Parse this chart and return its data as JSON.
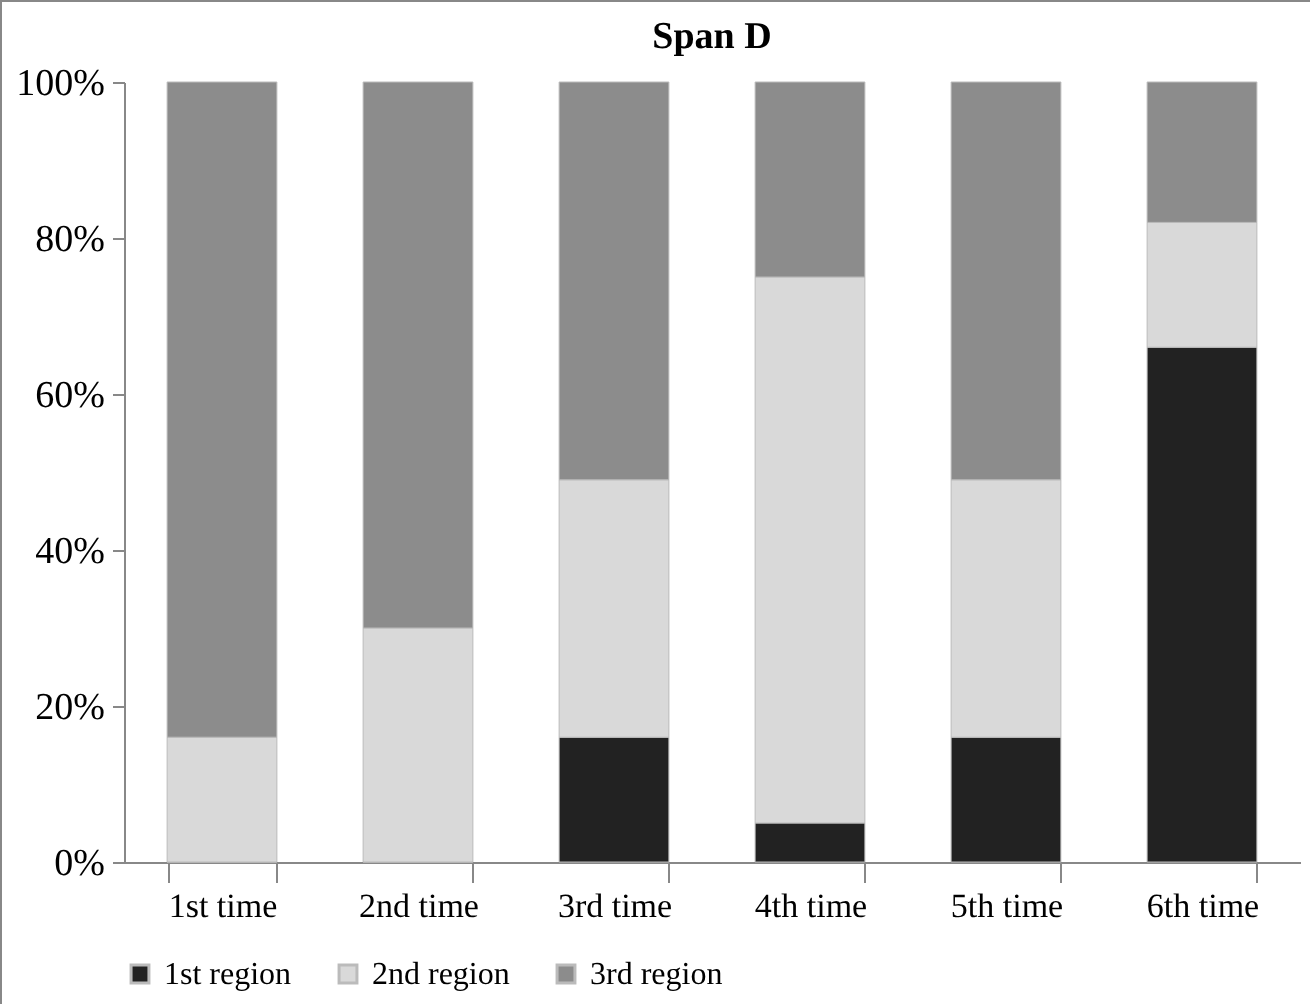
{
  "chart_data": {
    "type": "bar",
    "title": "Span D",
    "stacked": true,
    "categories": [
      "1st time",
      "2nd time",
      "3rd time",
      "4th time",
      "5th time",
      "6th time"
    ],
    "series": [
      {
        "name": "1st region",
        "color": "#222222",
        "values": [
          0,
          0,
          16,
          5,
          16,
          66
        ]
      },
      {
        "name": "2nd region",
        "color": "#d9d9d9",
        "values": [
          16,
          30,
          33,
          70,
          33,
          16
        ]
      },
      {
        "name": "3rd region",
        "color": "#8c8c8c",
        "values": [
          84,
          70,
          51,
          25,
          51,
          18
        ]
      }
    ],
    "ylim": [
      0,
      100
    ],
    "yticks": [
      {
        "value": 0,
        "label": "0%"
      },
      {
        "value": 20,
        "label": "20%"
      },
      {
        "value": 40,
        "label": "40%"
      },
      {
        "value": 60,
        "label": "60%"
      },
      {
        "value": 80,
        "label": "80%"
      },
      {
        "value": 100,
        "label": "100%"
      }
    ],
    "grid": false,
    "legend": "bottom"
  }
}
